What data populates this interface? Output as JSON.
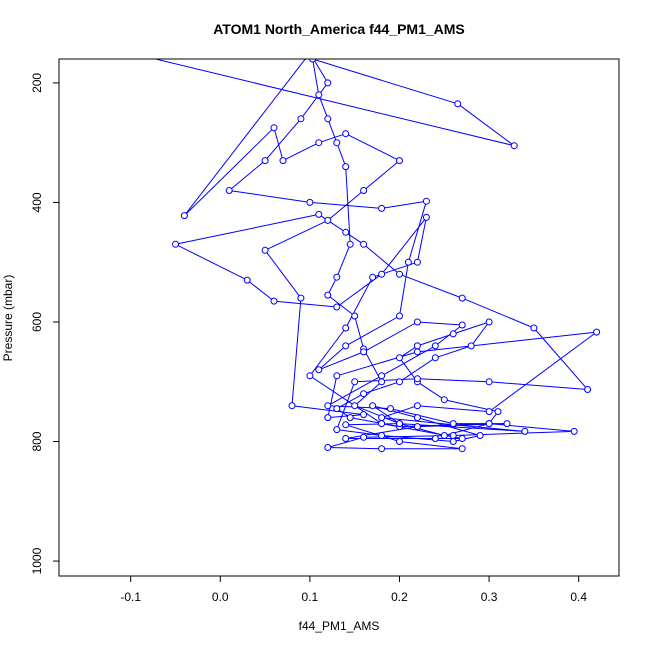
{
  "chart_data": {
    "type": "scatter",
    "title": "ATOM1 North_America f44_PM1_AMS",
    "xlabel": "f44_PM1_AMS",
    "ylabel": "Pressure (mbar)",
    "xlim": [
      -0.18,
      0.445
    ],
    "ylim": [
      1025,
      160
    ],
    "y_reversed": true,
    "x_ticks": [
      -0.1,
      0.0,
      0.1,
      0.2,
      0.3,
      0.4
    ],
    "x_tick_labels": [
      "-0.1",
      "0.0",
      "0.1",
      "0.2",
      "0.3",
      "0.4"
    ],
    "y_ticks": [
      200,
      400,
      600,
      800,
      1000
    ],
    "y_tick_labels": [
      "200",
      "400",
      "600",
      "800",
      "1000"
    ],
    "grid": false,
    "series_color": "#0000ff",
    "marker": "open-circle",
    "connected": true,
    "series": [
      {
        "points": [
          [
            -0.1,
            150
          ],
          [
            0.328,
            305
          ],
          [
            0.265,
            235
          ],
          [
            0.103,
            160
          ],
          [
            0.11,
            220
          ],
          [
            0.12,
            260
          ],
          [
            0.13,
            300
          ],
          [
            0.14,
            340
          ],
          [
            0.145,
            470
          ],
          [
            0.13,
            525
          ],
          [
            0.12,
            555
          ],
          [
            0.15,
            590
          ],
          [
            0.16,
            645
          ],
          [
            0.18,
            700
          ],
          [
            0.15,
            740
          ],
          [
            0.2,
            770
          ],
          [
            0.25,
            790
          ],
          [
            0.3,
            770
          ],
          [
            0.31,
            750
          ],
          [
            0.25,
            730
          ],
          [
            0.22,
            700
          ],
          [
            0.2,
            660
          ],
          [
            0.22,
            640
          ],
          [
            0.26,
            620
          ],
          [
            0.3,
            600
          ],
          [
            0.28,
            640
          ],
          [
            0.24,
            660
          ],
          [
            0.2,
            700
          ],
          [
            0.16,
            720
          ],
          [
            0.13,
            745
          ],
          [
            0.145,
            760
          ],
          [
            0.2,
            775
          ],
          [
            0.3,
            770
          ],
          [
            0.395,
            783
          ],
          [
            0.26,
            790
          ],
          [
            0.16,
            793
          ],
          [
            0.12,
            810
          ],
          [
            0.18,
            812
          ],
          [
            0.27,
            812
          ],
          [
            0.2,
            800
          ],
          [
            0.14,
            772
          ],
          [
            0.2,
            770
          ],
          [
            0.34,
            783
          ],
          [
            0.26,
            772
          ],
          [
            0.18,
            760
          ],
          [
            0.22,
            740
          ],
          [
            0.3,
            750
          ],
          [
            0.42,
            617
          ],
          [
            0.22,
            650
          ],
          [
            0.13,
            690
          ],
          [
            0.12,
            760
          ],
          [
            0.16,
            755
          ],
          [
            0.08,
            740
          ],
          [
            0.09,
            560
          ],
          [
            0.05,
            480
          ],
          [
            0.12,
            430
          ],
          [
            0.16,
            380
          ],
          [
            0.2,
            330
          ],
          [
            0.14,
            285
          ],
          [
            0.11,
            300
          ],
          [
            0.07,
            330
          ],
          [
            0.06,
            275
          ],
          [
            -0.04,
            422
          ],
          [
            0.1,
            150
          ],
          [
            0.12,
            200
          ],
          [
            0.09,
            260
          ],
          [
            0.05,
            330
          ],
          [
            0.01,
            380
          ],
          [
            0.1,
            400
          ],
          [
            0.18,
            410
          ],
          [
            0.23,
            398
          ],
          [
            0.21,
            500
          ],
          [
            0.2,
            590
          ],
          [
            0.14,
            640
          ],
          [
            0.11,
            680
          ],
          [
            0.16,
            650
          ],
          [
            0.22,
            600
          ],
          [
            0.27,
            605
          ],
          [
            0.24,
            640
          ],
          [
            0.18,
            690
          ],
          [
            0.12,
            740
          ],
          [
            0.19,
            745
          ],
          [
            0.26,
            770
          ],
          [
            0.32,
            770
          ],
          [
            0.22,
            775
          ],
          [
            0.14,
            795
          ],
          [
            0.24,
            795
          ],
          [
            0.27,
            795
          ],
          [
            0.18,
            770
          ],
          [
            0.1,
            690
          ],
          [
            0.14,
            610
          ],
          [
            0.17,
            525
          ],
          [
            0.22,
            500
          ],
          [
            0.23,
            425
          ],
          [
            0.18,
            520
          ],
          [
            0.13,
            575
          ],
          [
            0.06,
            565
          ],
          [
            0.03,
            530
          ],
          [
            -0.05,
            470
          ],
          [
            0.11,
            420
          ],
          [
            0.14,
            450
          ],
          [
            0.16,
            470
          ],
          [
            0.2,
            520
          ],
          [
            0.27,
            560
          ],
          [
            0.35,
            610
          ],
          [
            0.41,
            713
          ],
          [
            0.3,
            700
          ],
          [
            0.22,
            695
          ],
          [
            0.15,
            700
          ],
          [
            0.13,
            780
          ],
          [
            0.18,
            790
          ],
          [
            0.26,
            800
          ],
          [
            0.29,
            790
          ],
          [
            0.22,
            760
          ],
          [
            0.17,
            740
          ],
          [
            0.2,
            770
          ]
        ]
      }
    ]
  }
}
